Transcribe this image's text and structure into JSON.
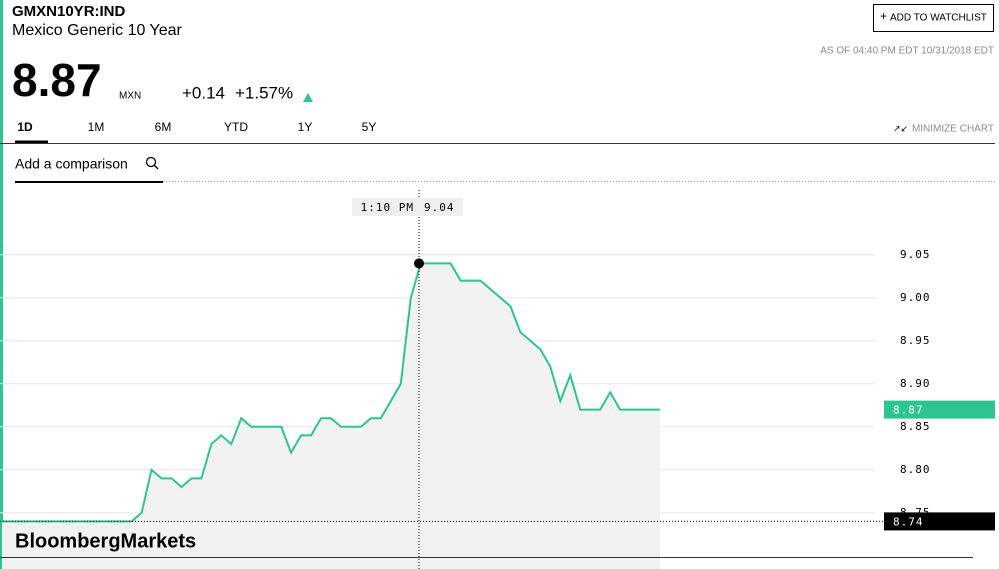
{
  "header": {
    "symbol": "GMXN10YR:IND",
    "name": "Mexico Generic 10 Year",
    "price": "8.87",
    "currency": "MXN",
    "change": "+0.14",
    "change_percent": "+1.57%",
    "as_of": "AS OF 04:40 PM EDT 10/31/2018 EDT",
    "watchlist_button": "ADD TO WATCHLIST",
    "minimize": "MINIMIZE CHART",
    "comparison_placeholder": "Add a comparison",
    "watermark": "BloombergMarkets"
  },
  "tabs": [
    "1D",
    "1M",
    "6M",
    "YTD",
    "1Y",
    "5Y"
  ],
  "chart_data": {
    "type": "line",
    "color": "#2dc58f",
    "area_color": "#f2f2f2",
    "grid": true,
    "categories": [
      null,
      null,
      null,
      null,
      null,
      null,
      null,
      null,
      null,
      null,
      null,
      null,
      null,
      null,
      null,
      null,
      null,
      null,
      null,
      null,
      null,
      null,
      null,
      null,
      null,
      null,
      null,
      null,
      null,
      null,
      null,
      null,
      null,
      null,
      null,
      null,
      null,
      null,
      null,
      null,
      null,
      null,
      null,
      null,
      null,
      null,
      null,
      null,
      null,
      null,
      null,
      null,
      null,
      null,
      null,
      null,
      null,
      null,
      null,
      null,
      null,
      null,
      null,
      null,
      null,
      null,
      null
    ],
    "values": [
      8.74,
      8.74,
      8.74,
      8.74,
      8.74,
      8.74,
      8.74,
      8.74,
      8.74,
      8.74,
      8.74,
      8.74,
      8.74,
      8.74,
      8.75,
      8.8,
      8.79,
      8.79,
      8.78,
      8.79,
      8.79,
      8.83,
      8.84,
      8.83,
      8.86,
      8.85,
      8.85,
      8.85,
      8.85,
      8.82,
      8.84,
      8.84,
      8.86,
      8.86,
      8.85,
      8.85,
      8.85,
      8.86,
      8.86,
      8.88,
      8.9,
      9.0,
      9.04,
      9.04,
      9.04,
      9.04,
      9.02,
      9.02,
      9.02,
      9.01,
      9.0,
      8.99,
      8.96,
      8.95,
      8.94,
      8.92,
      8.88,
      8.91,
      8.87,
      8.87,
      8.87,
      8.89,
      8.87,
      8.87,
      8.87,
      8.87,
      8.87
    ],
    "ylim": [
      8.73,
      9.13
    ],
    "yticks": [
      8.75,
      {
        "value": 8.8,
        "label": "8.80"
      },
      8.85,
      {
        "value": 8.9,
        "label": "8.90"
      },
      8.95,
      {
        "value": 9,
        "label": "9.00"
      },
      9.05
    ],
    "last_value": 8.87,
    "previous_close": 8.74,
    "crosshair": {
      "time": "1:10 PM",
      "value": 9.04
    }
  }
}
